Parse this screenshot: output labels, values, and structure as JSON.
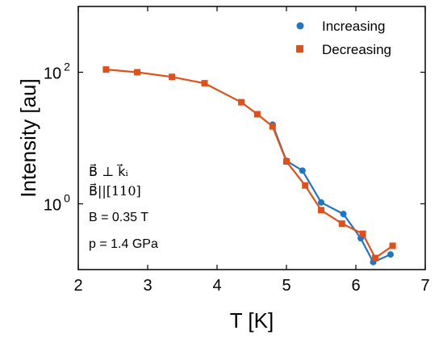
{
  "chart_data": {
    "type": "line",
    "xlabel": "T [K]",
    "ylabel": "Intensity [au]",
    "xlim": [
      2,
      7
    ],
    "ylim_log": [
      -1,
      3
    ],
    "yscale": "log",
    "x_ticks": [
      2,
      3,
      4,
      5,
      6,
      7
    ],
    "y_ticks": [
      {
        "exp": 0,
        "base": "10",
        "sup": "0"
      },
      {
        "exp": 2,
        "base": "10",
        "sup": "2"
      }
    ],
    "grid": false,
    "legend_position": "top-right",
    "series": [
      {
        "name": "Increasing",
        "color": "#1f77c4",
        "marker": "circle",
        "x": [
          4.8,
          5.0,
          5.23,
          5.5,
          5.82,
          6.07,
          6.25,
          6.5
        ],
        "y": [
          16,
          4.5,
          3.2,
          1.05,
          0.7,
          0.3,
          0.13,
          0.17
        ]
      },
      {
        "name": "Decreasing",
        "color": "#e0501a",
        "marker": "square",
        "x": [
          2.4,
          2.85,
          3.35,
          3.82,
          4.35,
          4.58,
          4.8,
          5.0,
          5.27,
          5.5,
          5.8,
          6.1,
          6.28,
          6.53
        ],
        "y": [
          110,
          100,
          85,
          68,
          35,
          23,
          15,
          4.4,
          1.9,
          0.8,
          0.5,
          0.35,
          0.15,
          0.23
        ]
      }
    ],
    "annotations": {
      "line1": "B⃗ ⊥ k⃗ᵢ",
      "line2": "B⃗||[110]",
      "line3": "B = 0.35 T",
      "line4": "p = 1.4 GPa"
    }
  }
}
